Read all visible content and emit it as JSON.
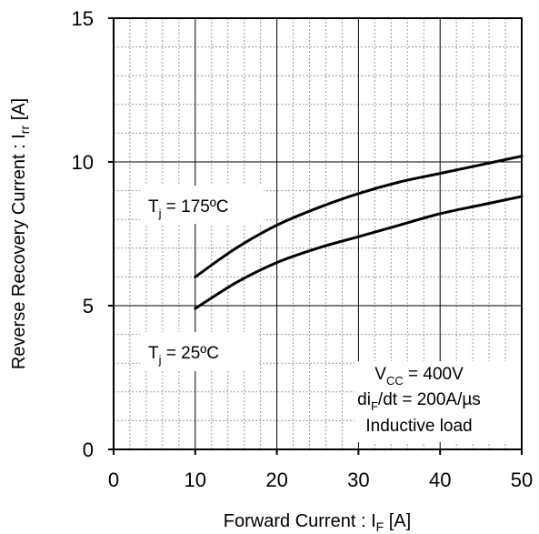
{
  "chart_data": {
    "type": "line",
    "title": "",
    "xlabel": {
      "main": "Forward Current : I",
      "sub": "F",
      "unit": " [A]"
    },
    "ylabel": {
      "main": "Reverse Recovery Current : I",
      "sub": "rr",
      "unit": " [A]"
    },
    "xlim": [
      0,
      50
    ],
    "ylim": [
      0,
      15
    ],
    "x_ticks": [
      0,
      10,
      20,
      30,
      40,
      50
    ],
    "y_ticks": [
      0,
      5,
      10,
      15
    ],
    "grid": {
      "major": true,
      "minor": true
    },
    "series": [
      {
        "name": "Tj = 175ºC",
        "x": [
          10,
          15,
          20,
          25,
          30,
          35,
          40,
          45,
          50
        ],
        "y": [
          6.0,
          7.0,
          7.8,
          8.4,
          8.9,
          9.3,
          9.6,
          9.9,
          10.2
        ]
      },
      {
        "name": "Tj = 25ºC",
        "x": [
          10,
          15,
          20,
          25,
          30,
          35,
          40,
          45,
          50
        ],
        "y": [
          4.9,
          5.8,
          6.5,
          7.0,
          7.4,
          7.8,
          8.2,
          8.5,
          8.8
        ]
      }
    ],
    "annotations": {
      "series_label_175": {
        "main": "T",
        "sub": "j",
        "rest": " = 175ºC"
      },
      "series_label_25": {
        "main": "T",
        "sub": "j",
        "rest": " = 25ºC"
      },
      "conditions": [
        {
          "main": "V",
          "sub": "CC",
          "rest": " = 400V"
        },
        {
          "main": "di",
          "sub": "F",
          "rest": "/dt = 200A/µs"
        },
        {
          "main": "Inductive load",
          "sub": "",
          "rest": ""
        }
      ]
    },
    "colors": {
      "line": "#000000",
      "axis": "#000000",
      "major_grid": "#000000",
      "minor_grid": "#9a9a9a",
      "background": "#ffffff"
    }
  }
}
